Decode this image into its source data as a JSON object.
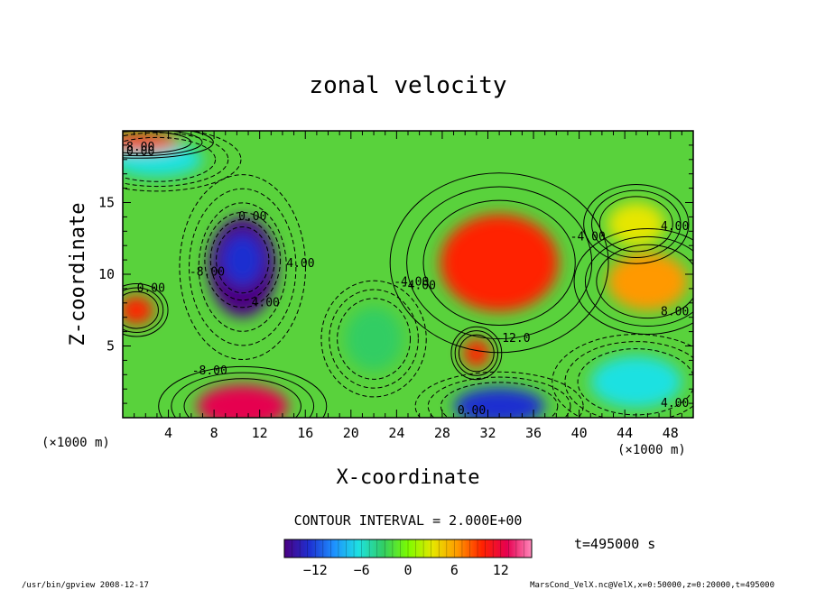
{
  "chart_data": {
    "type": "heatmap",
    "title": "zonal velocity",
    "xlabel": "X-coordinate",
    "ylabel": "Z-coordinate",
    "x_unit": "(×1000 m)",
    "y_unit": "(×1000 m)",
    "xlim": [
      0,
      50
    ],
    "ylim": [
      0,
      20
    ],
    "x_ticks": [
      4,
      8,
      12,
      16,
      20,
      24,
      28,
      32,
      36,
      40,
      44,
      48
    ],
    "y_ticks": [
      5,
      10,
      15
    ],
    "contour_interval": "CONTOUR INTERVAL = 2.000E+00",
    "time_label": "t=495000 s",
    "colorbar": {
      "range": [
        -16,
        16
      ],
      "ticks": [
        -12,
        -6,
        0,
        6,
        12
      ],
      "colors": [
        "#4b0082",
        "#1e2fd0",
        "#1e90ff",
        "#1ee1e1",
        "#32cd64",
        "#7cfc00",
        "#e6e600",
        "#ff9900",
        "#ff2200",
        "#e60050",
        "#ff88bb"
      ]
    },
    "contour_labels": [
      "4.00",
      "0.00",
      "-4.00",
      "8.00",
      "-12.0",
      "-8.00",
      "0.00",
      "4.00",
      "-4.00",
      "8.00",
      "0.00",
      "4.00",
      "0.00",
      "-8.00",
      "4.00",
      "-4.00"
    ],
    "features": [
      {
        "x": 10.5,
        "z": 10.5,
        "value": -16,
        "rx": 3.0,
        "rz": 3.5
      },
      {
        "x": 10.5,
        "z": 11.0,
        "value": -14,
        "rx": 1.8,
        "rz": 1.8
      },
      {
        "x": 33.0,
        "z": 10.8,
        "value": 9,
        "rx": 5.2,
        "rz": 3.4
      },
      {
        "x": 46.0,
        "z": 9.5,
        "value": 7,
        "rx": 3.5,
        "rz": 2.0
      },
      {
        "x": 31.0,
        "z": 4.5,
        "value": 8,
        "rx": 1.2,
        "rz": 1.0
      },
      {
        "x": 10.5,
        "z": 0.8,
        "value": 12,
        "rx": 4.0,
        "rz": 1.5
      },
      {
        "x": 33.0,
        "z": 0.8,
        "value": -14,
        "rx": 4.0,
        "rz": 1.3
      },
      {
        "x": 45.0,
        "z": 2.5,
        "value": -6,
        "rx": 4.0,
        "rz": 1.8
      },
      {
        "x": 22.0,
        "z": 5.5,
        "value": -4,
        "rx": 2.5,
        "rz": 2.2
      },
      {
        "x": 3.0,
        "z": 18.0,
        "value": -6,
        "rx": 4.0,
        "rz": 1.2
      },
      {
        "x": 1.5,
        "z": 19.2,
        "value": 10,
        "rx": 3.5,
        "rz": 0.6
      },
      {
        "x": 45.0,
        "z": 13.5,
        "value": 3,
        "rx": 2.5,
        "rz": 1.5
      },
      {
        "x": 1.2,
        "z": 7.5,
        "value": 9,
        "rx": 1.5,
        "rz": 1.0
      }
    ],
    "footer_left": "/usr/bin/gpview  2008-12-17",
    "footer_right": "MarsCond_VelX.nc@VelX,x=0:50000,z=0:20000,t=495000"
  }
}
